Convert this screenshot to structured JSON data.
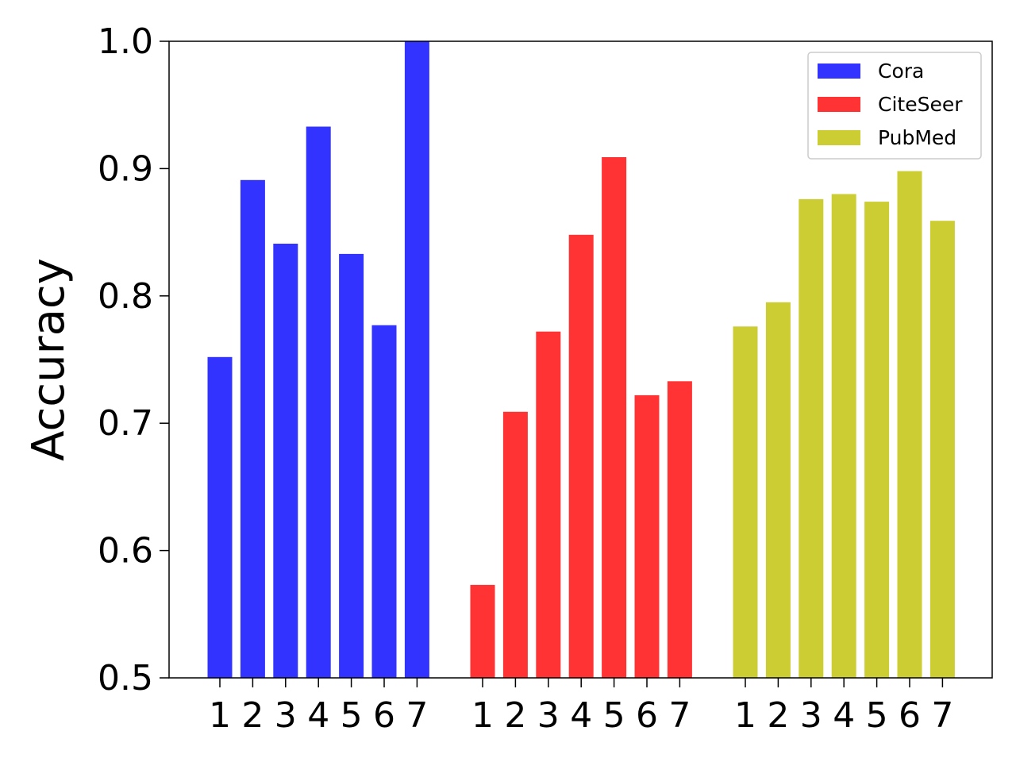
{
  "chart_data": {
    "type": "bar",
    "title": "",
    "xlabel": "",
    "ylabel": "Accuracy",
    "ylim": [
      0.5,
      1.0
    ],
    "yticks": [
      "0.5",
      "0.6",
      "0.7",
      "0.8",
      "0.9",
      "1.0"
    ],
    "categories": [
      "1",
      "2",
      "3",
      "4",
      "5",
      "6",
      "7"
    ],
    "legend_position": "top-right",
    "grid": false,
    "series": [
      {
        "name": "Cora",
        "color": "#3333ff",
        "values": [
          0.752,
          0.891,
          0.841,
          0.933,
          0.833,
          0.777,
          1.0
        ]
      },
      {
        "name": "CiteSeer",
        "color": "#ff3333",
        "values": [
          0.573,
          0.709,
          0.772,
          0.848,
          0.909,
          0.722,
          0.733
        ]
      },
      {
        "name": "PubMed",
        "color": "#cccc33",
        "values": [
          0.776,
          0.795,
          0.876,
          0.88,
          0.874,
          0.898,
          0.859
        ]
      }
    ]
  }
}
